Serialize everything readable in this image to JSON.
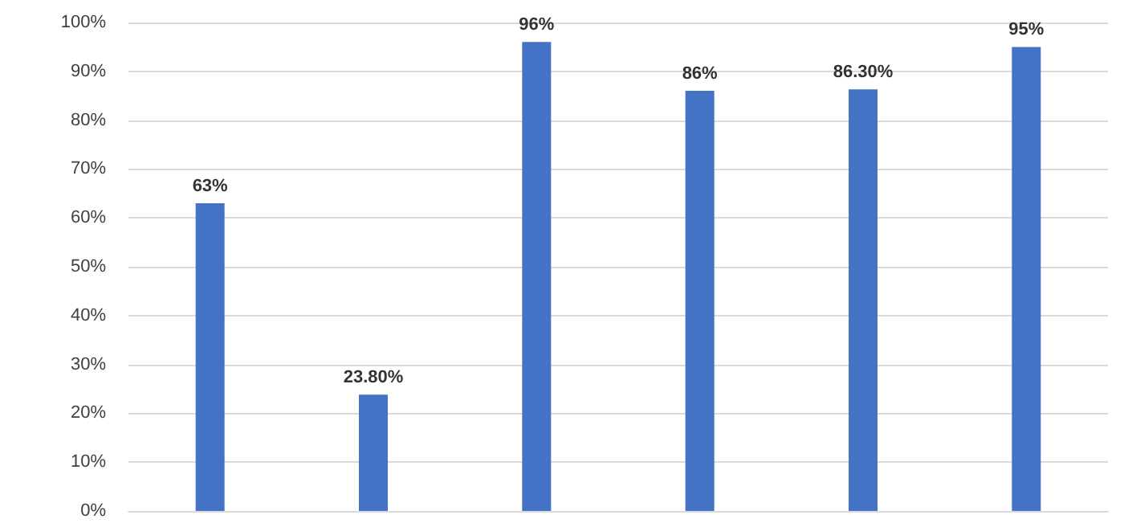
{
  "chart_data": {
    "type": "bar",
    "categories": [
      null,
      null,
      null,
      null,
      null,
      null
    ],
    "values": [
      63,
      23.8,
      96,
      86,
      86.3,
      95
    ],
    "value_labels": [
      "63%",
      "23.80%",
      "96%",
      "86%",
      "86.30%",
      "95%"
    ],
    "color": "#4472c4",
    "ylim": [
      0,
      100
    ],
    "yticks": [
      {
        "value": 0,
        "label": "0%"
      },
      {
        "value": 10,
        "label": "10%"
      },
      {
        "value": 20,
        "label": "20%"
      },
      {
        "value": 30,
        "label": "30%"
      },
      {
        "value": 40,
        "label": "40%"
      },
      {
        "value": 50,
        "label": "50%"
      },
      {
        "value": 60,
        "label": "60%"
      },
      {
        "value": 70,
        "label": "70%"
      },
      {
        "value": 80,
        "label": "80%"
      },
      {
        "value": 90,
        "label": "90%"
      },
      {
        "value": 100,
        "label": "100%"
      }
    ],
    "grid": "y"
  }
}
